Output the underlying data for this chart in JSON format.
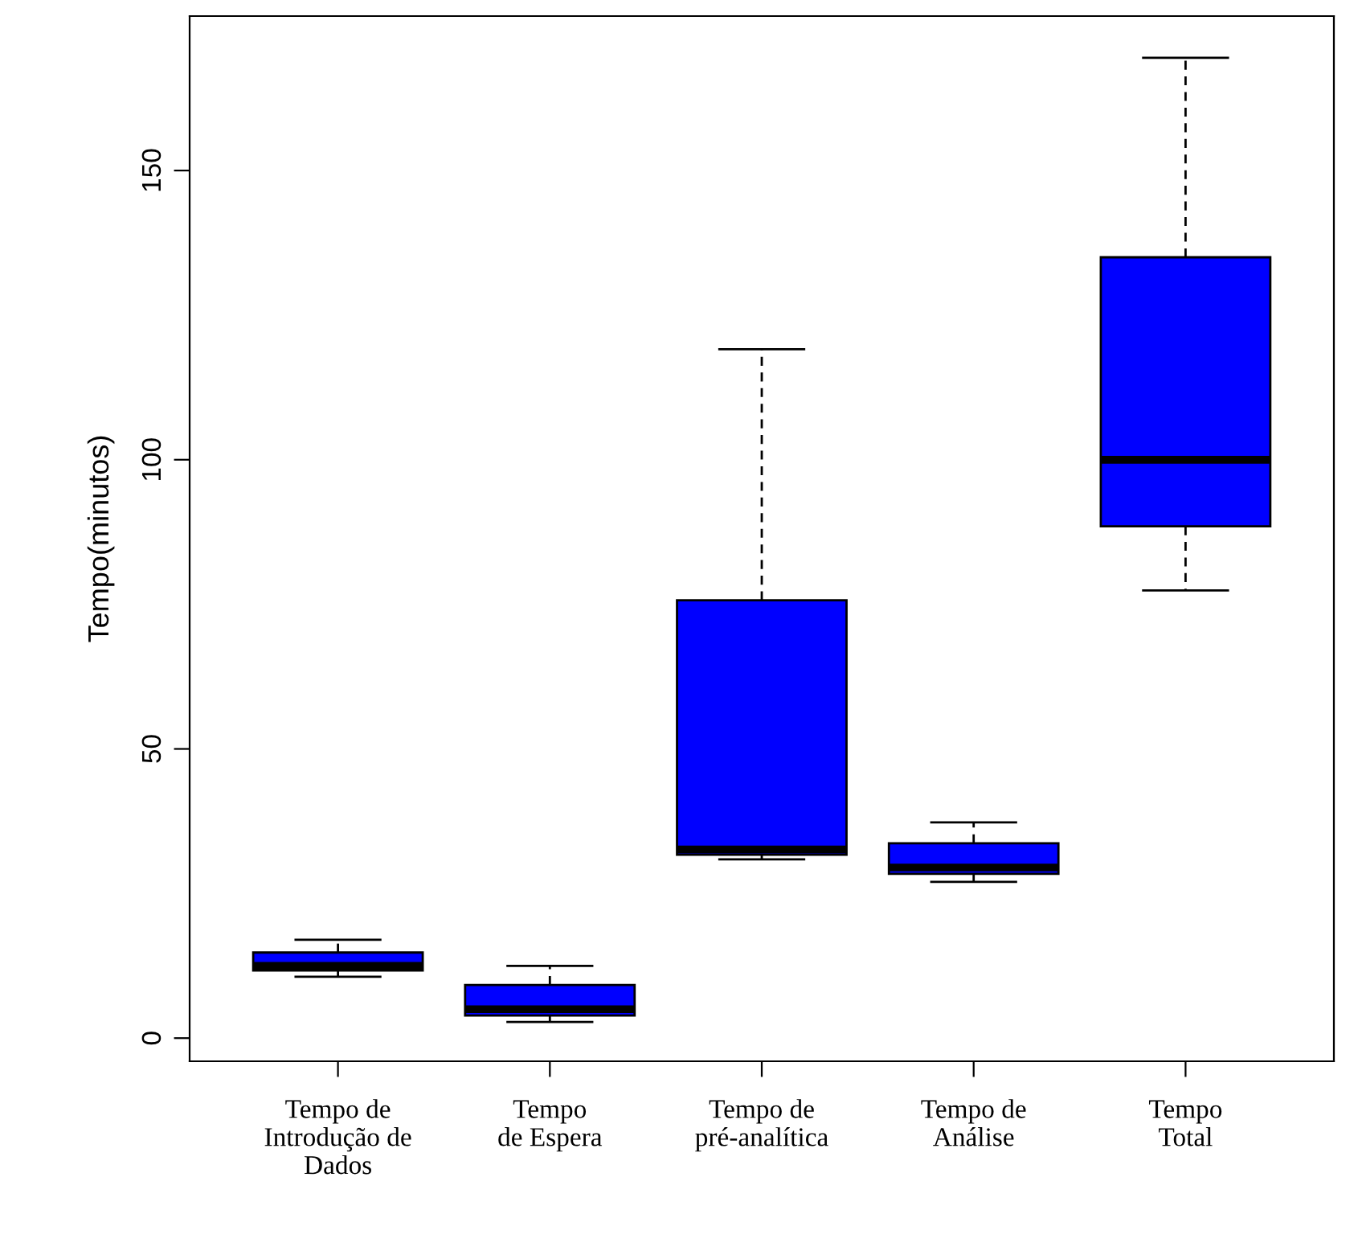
{
  "chart_data": {
    "type": "box",
    "ylabel": "Tempo(minutos)",
    "categories": [
      "Tempo de\nIntrodução de\nDados",
      "Tempo\nde Espera",
      "Tempo de\npré-analítica",
      "Tempo de\nAnálise",
      "Tempo\nTotal"
    ],
    "color": "#0000ff",
    "boxes": [
      {
        "low": 10.6,
        "q1": 11.7,
        "median": 12.5,
        "q3": 14.8,
        "high": 17.0
      },
      {
        "low": 2.8,
        "q1": 3.9,
        "median": 5.0,
        "q3": 9.2,
        "high": 12.5
      },
      {
        "low": 30.9,
        "q1": 31.7,
        "median": 32.6,
        "q3": 75.7,
        "high": 119.1
      },
      {
        "low": 27.0,
        "q1": 28.4,
        "median": 29.5,
        "q3": 33.7,
        "high": 37.3
      },
      {
        "low": 77.4,
        "q1": 88.5,
        "median": 100,
        "q3": 135,
        "high": 169.5
      }
    ],
    "ylim": [
      -4,
      176.7
    ],
    "yticks": [
      0,
      50,
      100,
      150
    ],
    "grid": false,
    "legend": false
  }
}
